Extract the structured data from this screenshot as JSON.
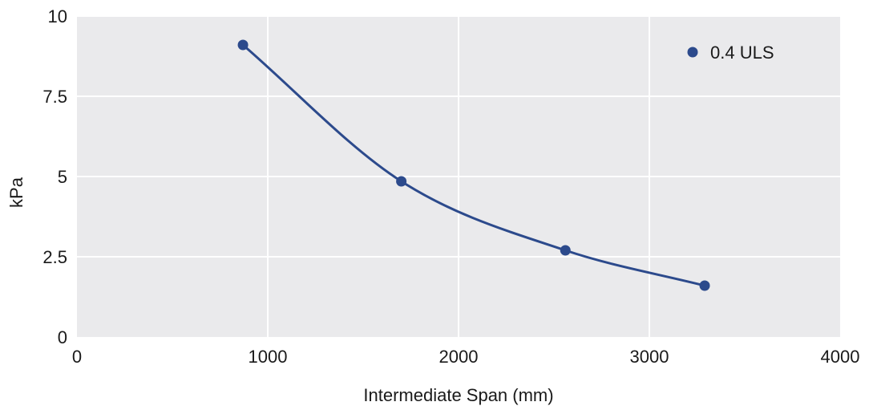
{
  "chart_data": {
    "type": "line",
    "title": "",
    "xlabel": "Intermediate Span (mm)",
    "ylabel": "kPa",
    "xlim": [
      0,
      4000
    ],
    "ylim": [
      0,
      10
    ],
    "x_ticks": [
      0,
      1000,
      2000,
      3000,
      4000
    ],
    "x_tick_labels": [
      "0",
      "1000",
      "2000",
      "3000",
      "4000"
    ],
    "y_ticks": [
      0,
      2.5,
      5,
      7.5,
      10
    ],
    "y_tick_labels": [
      "0",
      "2.5",
      "5",
      "7.5",
      "10"
    ],
    "grid": true,
    "legend_position": "top-right",
    "background_color": "#eaeaec",
    "grid_color": "#ffffff",
    "series": [
      {
        "name": "0.4 ULS",
        "color": "#2c4a8c",
        "marker": "circle",
        "smooth": true,
        "points": [
          {
            "x": 870,
            "y": 9.1
          },
          {
            "x": 1700,
            "y": 4.85
          },
          {
            "x": 2560,
            "y": 2.7
          },
          {
            "x": 3290,
            "y": 1.6
          }
        ]
      }
    ]
  }
}
